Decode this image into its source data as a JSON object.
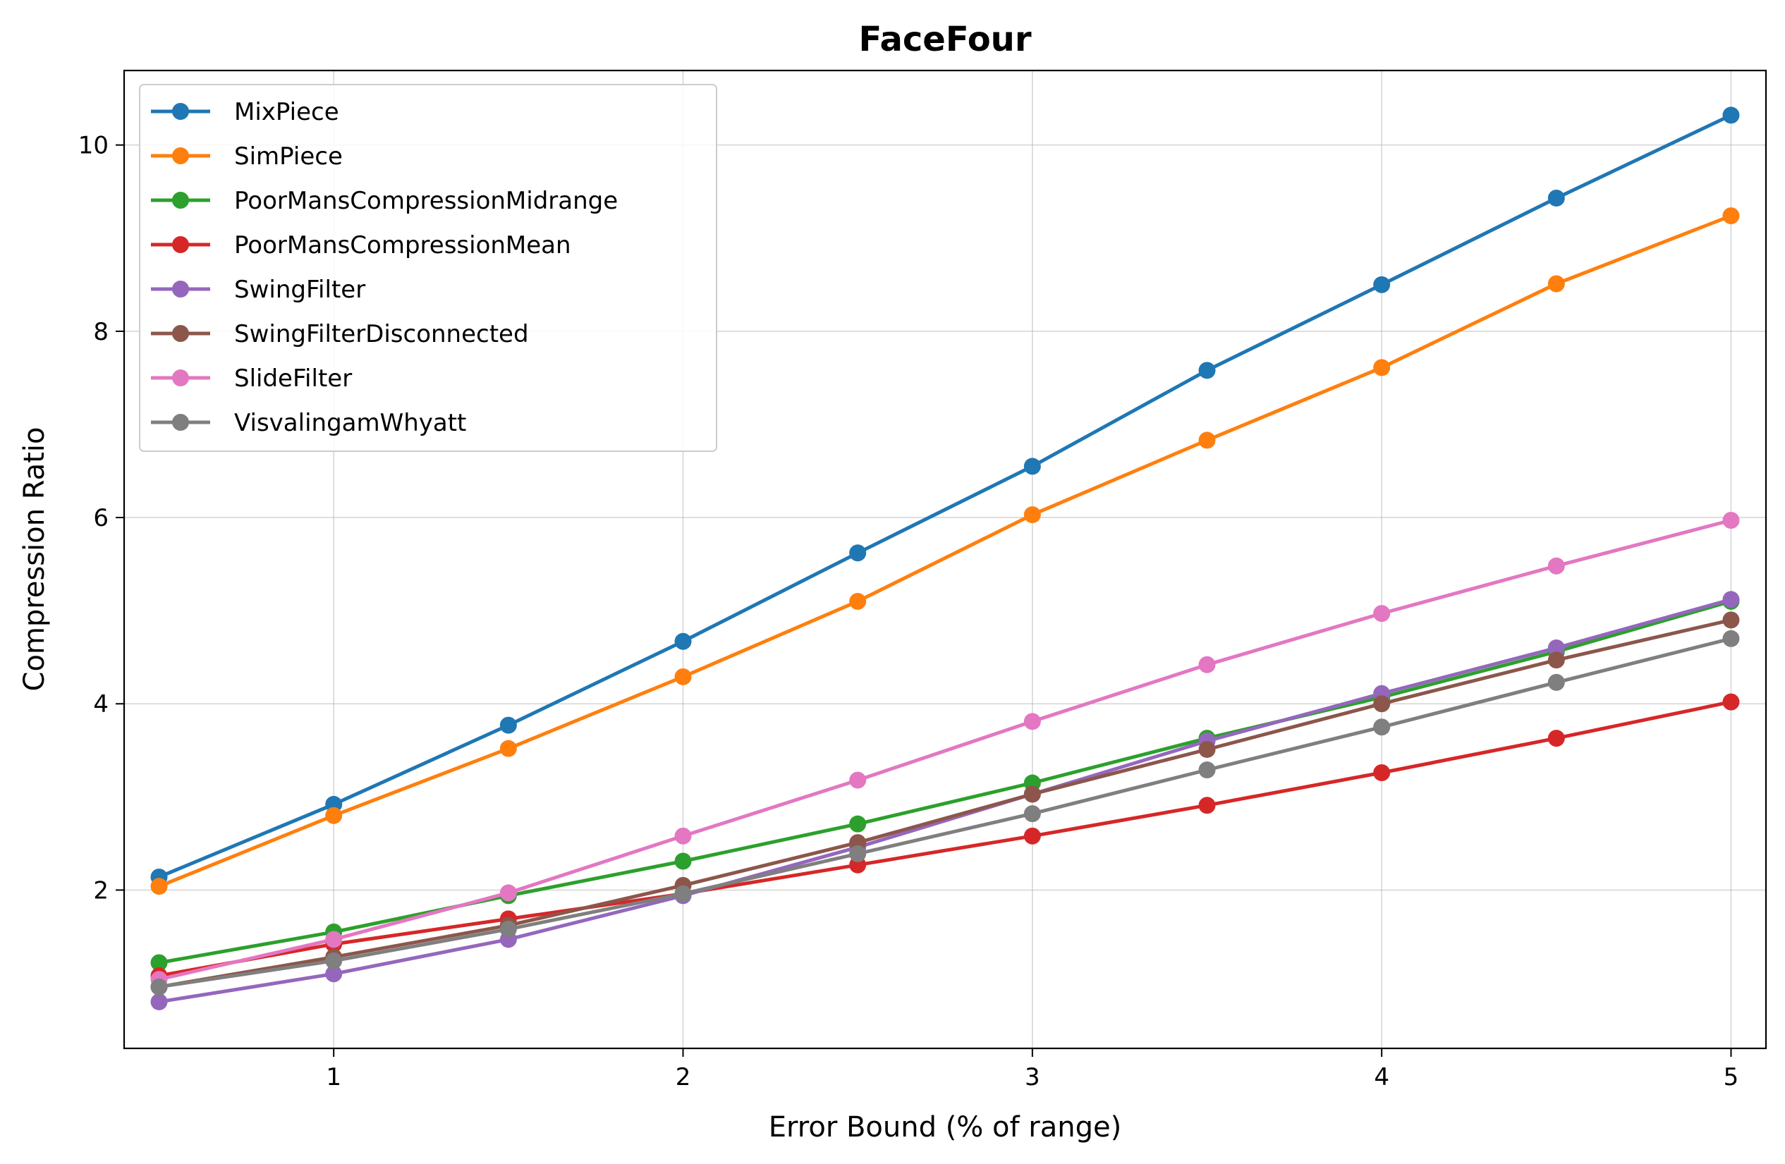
{
  "chart_data": {
    "type": "line",
    "title": "FaceFour",
    "xlabel": "Error Bound (% of range)",
    "ylabel": "Compression Ratio",
    "xlim": [
      0.4,
      5.1
    ],
    "ylim": [
      0.3,
      10.8
    ],
    "xticks": [
      1,
      2,
      3,
      4,
      5
    ],
    "yticks": [
      2,
      4,
      6,
      8,
      10
    ],
    "grid": true,
    "legend_position": "top-left",
    "x": [
      0.5,
      1.0,
      1.5,
      2.0,
      2.5,
      3.0,
      3.5,
      4.0,
      4.5,
      5.0
    ],
    "series": [
      {
        "name": "MixPiece",
        "color": "#1f77b4",
        "values": [
          2.14,
          2.92,
          3.77,
          4.67,
          5.62,
          6.55,
          7.58,
          8.5,
          9.43,
          10.32
        ]
      },
      {
        "name": "SimPiece",
        "color": "#ff7f0e",
        "values": [
          2.04,
          2.8,
          3.52,
          4.29,
          5.1,
          6.03,
          6.83,
          7.61,
          8.51,
          9.24
        ]
      },
      {
        "name": "PoorMansCompressionMidrange",
        "color": "#2ca02c",
        "values": [
          1.22,
          1.55,
          1.94,
          2.31,
          2.71,
          3.15,
          3.63,
          4.07,
          4.56,
          5.1
        ]
      },
      {
        "name": "PoorMansCompressionMean",
        "color": "#d62728",
        "values": [
          1.08,
          1.42,
          1.69,
          1.96,
          2.27,
          2.58,
          2.91,
          3.26,
          3.63,
          4.02
        ]
      },
      {
        "name": "SwingFilter",
        "color": "#9467bd",
        "values": [
          0.8,
          1.1,
          1.47,
          1.94,
          2.46,
          3.03,
          3.6,
          4.11,
          4.6,
          5.12
        ]
      },
      {
        "name": "SwingFilterDisconnected",
        "color": "#8c564b",
        "values": [
          0.96,
          1.28,
          1.62,
          2.05,
          2.51,
          3.03,
          3.51,
          4.0,
          4.47,
          4.9
        ]
      },
      {
        "name": "SlideFilter",
        "color": "#e377c2",
        "values": [
          1.04,
          1.47,
          1.97,
          2.58,
          3.18,
          3.81,
          4.42,
          4.97,
          5.48,
          5.97
        ]
      },
      {
        "name": "VisvalingamWhyatt",
        "color": "#7f7f7f",
        "values": [
          0.96,
          1.24,
          1.58,
          1.96,
          2.39,
          2.82,
          3.29,
          3.75,
          4.23,
          4.7
        ]
      }
    ]
  }
}
